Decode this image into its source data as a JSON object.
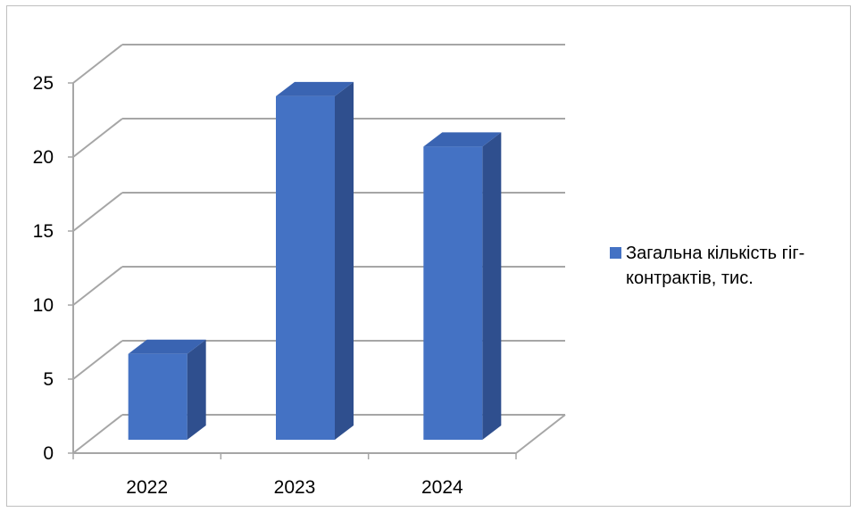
{
  "chart_data": {
    "type": "bar",
    "style": "3d-column",
    "categories": [
      "2022",
      "2023",
      "2024"
    ],
    "series": [
      {
        "name": "Загальна кількість гіг-контрактів, тис.",
        "values": [
          5.8,
          23.2,
          19.8
        ],
        "color": "#4472C4"
      }
    ],
    "ylim": [
      0,
      25
    ],
    "yticks": [
      "0",
      "5",
      "10",
      "15",
      "20",
      "25"
    ],
    "grid": true,
    "legend_position": "right"
  },
  "legend": {
    "label": "Загальна кількість гіг-\nконтрактів, тис."
  },
  "colors": {
    "bar_front": "#4472C4",
    "bar_side": "#2F4F8E",
    "bar_top": "#3A64B2",
    "grid": "#a6a6a6"
  }
}
